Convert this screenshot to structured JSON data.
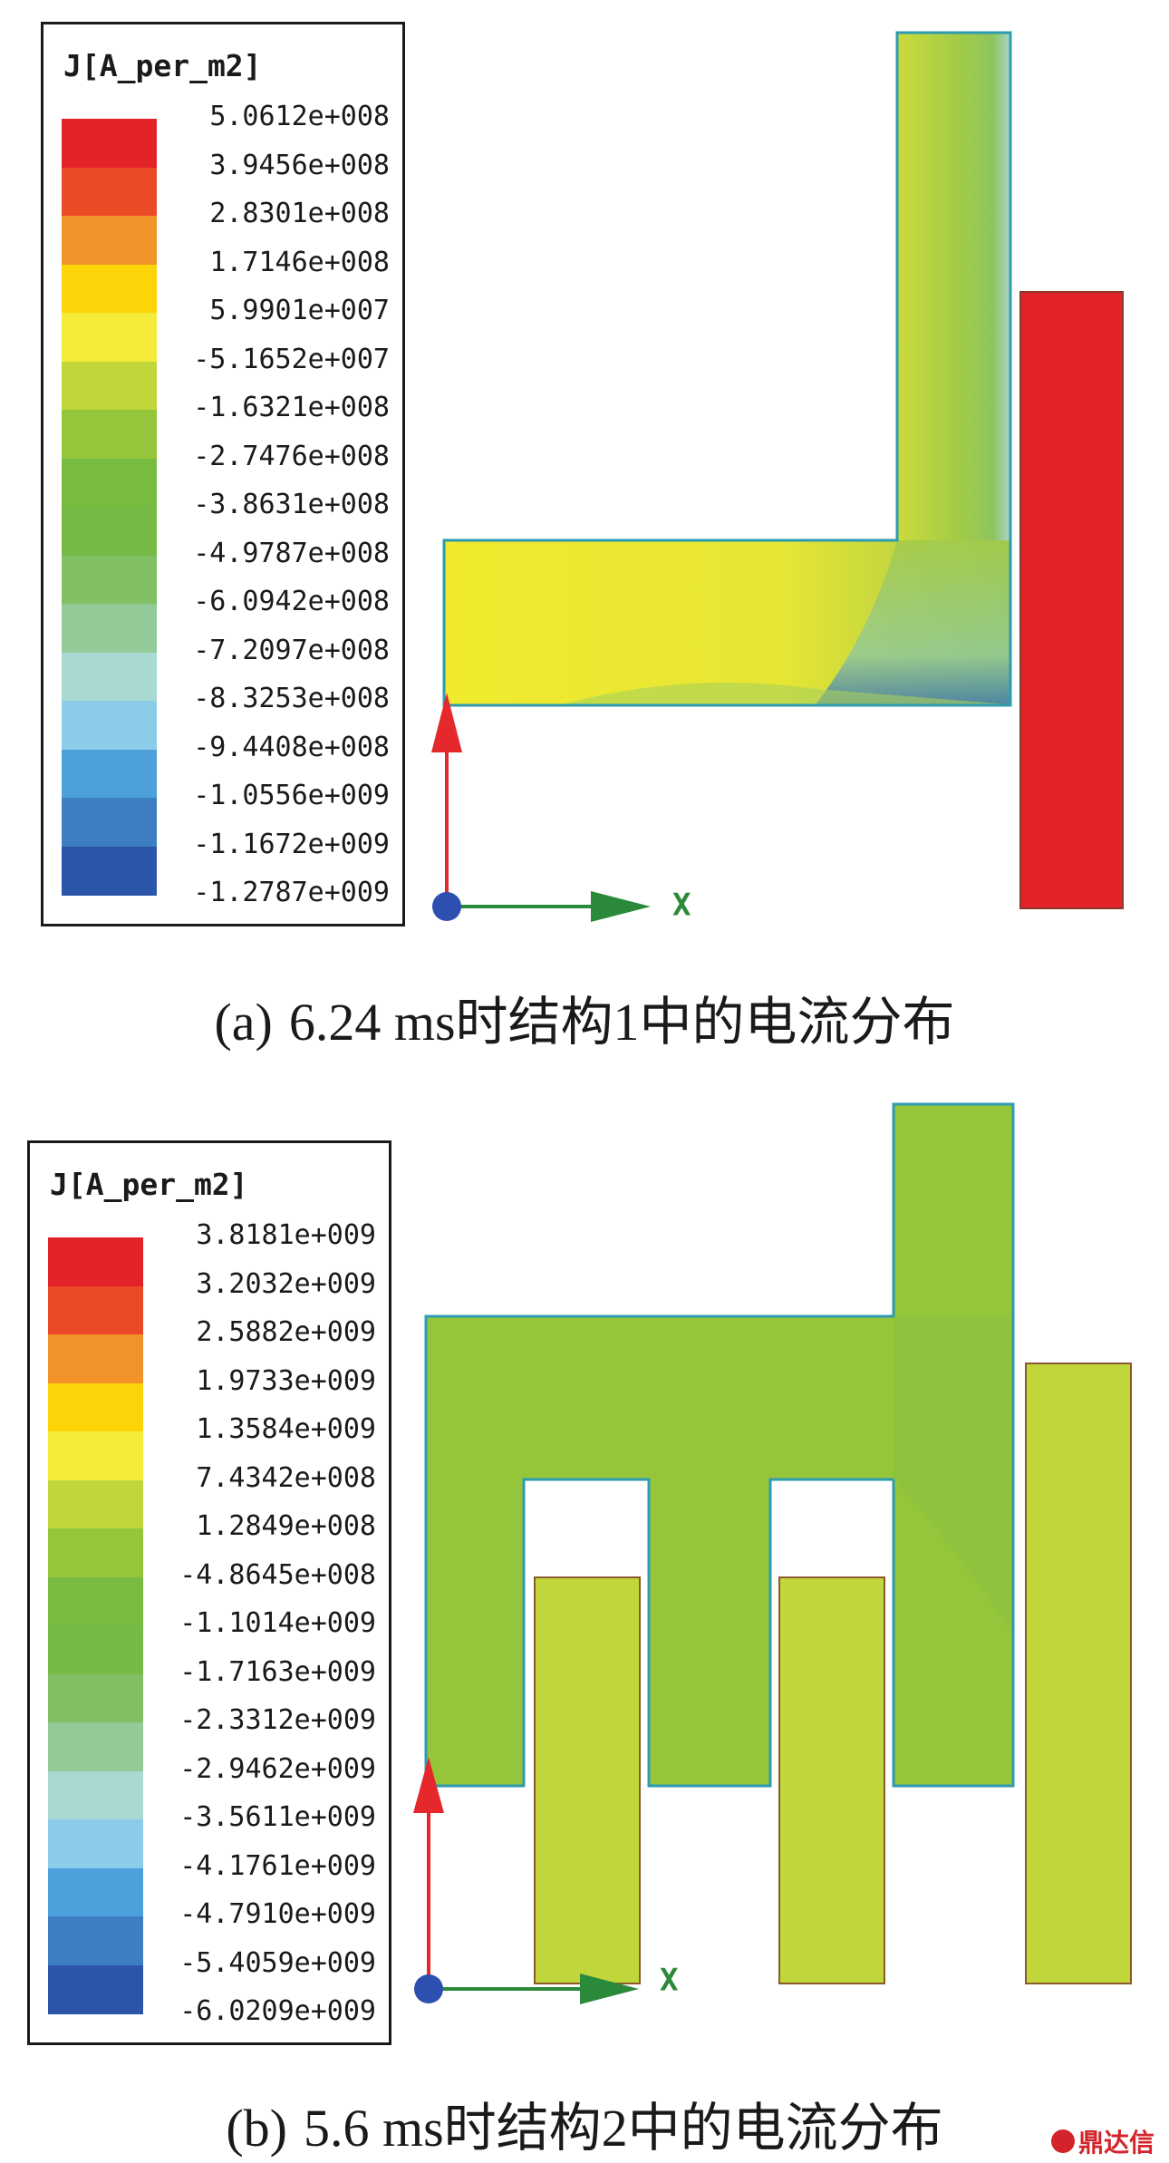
{
  "panels": [
    {
      "legend": {
        "title": "J[A_per_m2]",
        "labels": [
          "5.0612e+008",
          "3.9456e+008",
          "2.8301e+008",
          "1.7146e+008",
          "5.9901e+007",
          "-5.1652e+007",
          "-1.6321e+008",
          "-2.7476e+008",
          "-3.8631e+008",
          "-4.9787e+008",
          "-6.0942e+008",
          "-7.2097e+008",
          "-8.3253e+008",
          "-9.4408e+008",
          "-1.0556e+009",
          "-1.1672e+009",
          "-1.2787e+009"
        ]
      },
      "axis_label": "X",
      "caption": {
        "tag": "(a)",
        "text": "6.24 ms时结构1中的电流分布"
      }
    },
    {
      "legend": {
        "title": "J[A_per_m2]",
        "labels": [
          "3.8181e+009",
          "3.2032e+009",
          "2.5882e+009",
          "1.9733e+009",
          "1.3584e+009",
          "7.4342e+008",
          "1.2849e+008",
          "-4.8645e+008",
          "-1.1014e+009",
          "-1.7163e+009",
          "-2.3312e+009",
          "-2.9462e+009",
          "-3.5611e+009",
          "-4.1761e+009",
          "-4.7910e+009",
          "-5.4059e+009",
          "-6.0209e+009"
        ]
      },
      "axis_label": "X",
      "caption": {
        "tag": "(b)",
        "text": "5.6 ms时结构2中的电流分布"
      }
    }
  ],
  "colorscale": [
    "#e3232a",
    "#ea4a25",
    "#f2932a",
    "#fcd408",
    "#f5ec3a",
    "#c1d63a",
    "#95c53b",
    "#77bb41",
    "#75ba45",
    "#80c062",
    "#93cb98",
    "#a8d9d3",
    "#8bcde9",
    "#4da0d9",
    "#3d7dc1",
    "#2b55a8"
  ],
  "watermark": "鼎达信"
}
